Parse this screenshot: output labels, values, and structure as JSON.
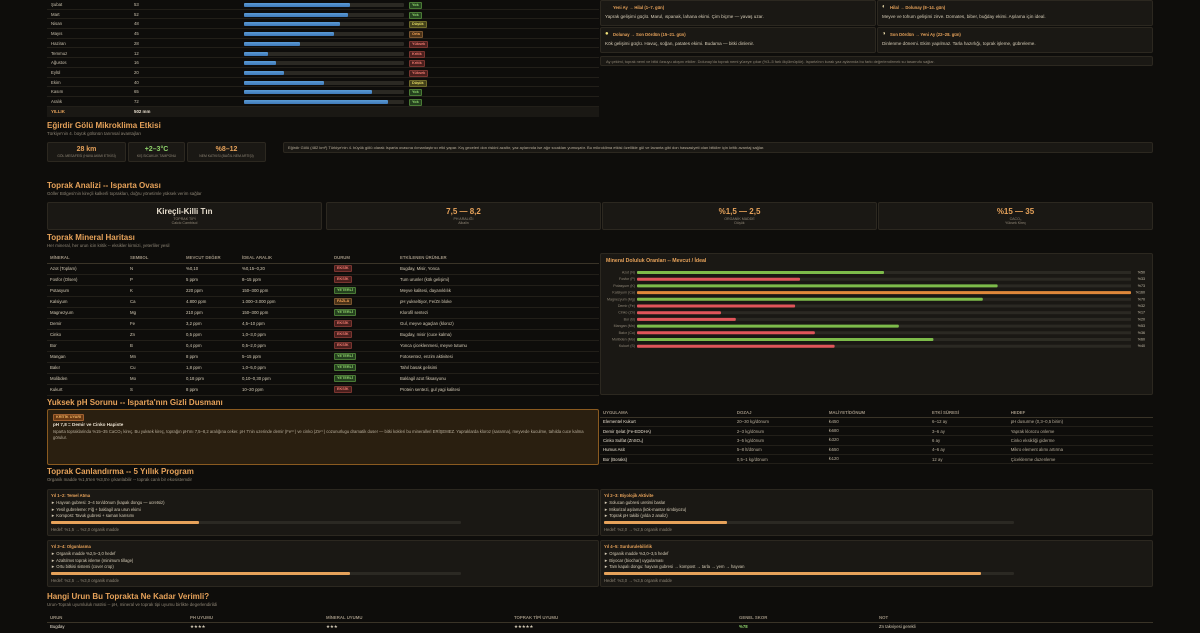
{
  "rain": {
    "rows": [
      {
        "month": "Şubat",
        "mm": "53",
        "pct": 0.66,
        "badge": "Yok",
        "cls": "b-green"
      },
      {
        "month": "Mart",
        "mm": "52",
        "pct": 0.65,
        "badge": "Yok",
        "cls": "b-green"
      },
      {
        "month": "Nisan",
        "mm": "48",
        "pct": 0.6,
        "badge": "Düşük",
        "cls": "b-yellow"
      },
      {
        "month": "Mayıs",
        "mm": "45",
        "pct": 0.56,
        "badge": "Orta",
        "cls": "b-orange"
      },
      {
        "month": "Haziran",
        "mm": "28",
        "pct": 0.35,
        "badge": "Yüksek",
        "cls": "b-red"
      },
      {
        "month": "Temmuz",
        "mm": "12",
        "pct": 0.15,
        "badge": "Kritik",
        "cls": "b-red"
      },
      {
        "month": "Ağustos",
        "mm": "16",
        "pct": 0.2,
        "badge": "Kritik",
        "cls": "b-red"
      },
      {
        "month": "Eylül",
        "mm": "20",
        "pct": 0.25,
        "badge": "Yüksek",
        "cls": "b-red"
      },
      {
        "month": "Ekim",
        "mm": "40",
        "pct": 0.5,
        "badge": "Düşük",
        "cls": "b-yellow"
      },
      {
        "month": "Kasım",
        "mm": "65",
        "pct": 0.8,
        "badge": "Yok",
        "cls": "b-green"
      },
      {
        "month": "Aralık",
        "mm": "72",
        "pct": 0.9,
        "badge": "Yok",
        "cls": "b-green"
      }
    ],
    "total_label": "YILLIK",
    "total_value": "502 mm"
  },
  "moon": {
    "cards": [
      {
        "title": "Yeni Ay → Hilal (1–7. gün)",
        "text": "Yaprak gelişimi güçlü. Marul, ıspanak, lahana ekimi. Çim biçme — yavaş uzar.",
        "icon": "●",
        "icolor": "#1a1814"
      },
      {
        "title": "Hilal → Dolunay (8–14. gün)",
        "text": "Meyve ve tohum gelişimi zirve. Domates, biber, buğday ekimi. Aşılama için ideal.",
        "icon": "◐",
        "icolor": "#e9d9a9"
      },
      {
        "title": "Dolunay → Son Dördün (15–21. gün)",
        "text": "Kök gelişimi güçlü. Havuç, soğan, patates ekimi. Budama — bitki dinlenir.",
        "icon": "●",
        "icolor": "#f2e27a"
      },
      {
        "title": "Son Dördün → Yeni Ay (22–28. gün)",
        "text": "Dinlenme dönemi. Ekim yapılmaz. Tarla hazırlığı, toprak işleme, gübreleme.",
        "icon": "◑",
        "icolor": "#e9d9a9"
      }
    ],
    "note": "Ay çekimi, toprak nemi ve bitki özsuyu akışını etkiler. Dolunay'da toprak nemi yüzeye çıkar (%3–5 fark ölçülmüştür). Isparta'nın kurak yaz aylarında bu farkı değerlendirmek su tasarrufu sağlar."
  },
  "lake": {
    "title": "Eğirdir Gölü Mikroklima Etkisi",
    "subtitle": "Türkiye'nin 4. büyük gölünün tarımsal avantajları",
    "stats": [
      {
        "value": "28 km",
        "label": "GÖL MESAFESİ (HAVA AKIMI ETKİSİ)",
        "color": "#e6a25a"
      },
      {
        "value": "+2–3°C",
        "label": "KIŞ SICAKLIK TAMPONU",
        "color": "#8fd36b"
      },
      {
        "value": "%8–12",
        "label": "NEM KATKISI (BAĞIL NEM ARTIŞI)",
        "color": "#e6a25a"
      }
    ],
    "text": "Eğirdir Gölü (482 km²) Türkiye'nin 4. büyük gölü olarak Isparta ovasına ılımanlaştırıcı etki yapar. Kış geceleri don riskini azaltır, yaz aylarında ise ağır sıcakları yumuşatır. Bu mikroklima etkisi özellikle gül ve lavanta gibi don hassasiyeti olan bitkiler için kritik avantaj sağlar."
  },
  "soil": {
    "title": "Toprak Analizi -- Isparta Ovası",
    "subtitle": "Göller Bölgesi'nin kireçli kalkerli toprakları, doğru yönetimle yüksek verim sağlar",
    "cards": [
      {
        "value": "Kireçli-Killi Tın",
        "label": "TOPRAK TİPİ",
        "sub": "Calcic Cambisol",
        "color": "#e8dfcf"
      },
      {
        "value": "7,5 — 8,2",
        "label": "PH ARALIĞI",
        "sub": "Alkalin",
        "color": "#e6a25a"
      },
      {
        "value": "%1,5 — 2,5",
        "label": "ORGANİK MADDE",
        "sub": "Düşük",
        "color": "#e6a25a"
      },
      {
        "value": "%15 — 35",
        "label": "CACO₃",
        "sub": "Yüksek Kireç",
        "color": "#e6a25a"
      }
    ]
  },
  "mineral": {
    "title": "Toprak Mineral Haritası",
    "subtitle": "Her mineral, her urun icin kritik -- eksikler kirmizi, yeterliler yesil",
    "headers": [
      "MİNERAL",
      "SEMBOL",
      "MEVCUT DEĞER",
      "İDEAL ARALIK",
      "DURUM",
      "ETKİLENEN ÜRÜNLER"
    ],
    "rows": [
      [
        "Azot (Toplam)",
        "N",
        "%0,10",
        "%0,15–0,20",
        "EKSİK",
        "Bugday, Misir, Yonca",
        "b-red"
      ],
      [
        "Fosfor (Olsen)",
        "P",
        "5 ppm",
        "8–15 ppm",
        "EKSİK",
        "Tum urunler (kök gelişimi)",
        "b-red"
      ],
      [
        "Potasyum",
        "K",
        "220 ppm",
        "150–300 ppm",
        "YETERLİ",
        "Meyve kalitesi, dayanıklılık",
        "b-green"
      ],
      [
        "Kalsiyum",
        "Ca",
        "4.800 ppm",
        "1.000–3.000 ppm",
        "FAZLA",
        "pH yukseltiyor, Fe/Zn bloke",
        "b-orange"
      ],
      [
        "Magnezyum",
        "Mg",
        "210 ppm",
        "150–300 ppm",
        "YETERLİ",
        "Klorofil sentezi",
        "b-green"
      ],
      [
        "Demir",
        "Fe",
        "3,2 ppm",
        "4,5–10 ppm",
        "EKSİK",
        "Gul, meyve agaçları (kloroz)",
        "b-red"
      ],
      [
        "Cinko",
        "Zn",
        "0,5 ppm",
        "1,0–3,0 ppm",
        "EKSİK",
        "Bugday, misir (cuce kalma)",
        "b-red"
      ],
      [
        "Bor",
        "B",
        "0,4 ppm",
        "0,5–2,0 ppm",
        "EKSİK",
        "Yonca çiceklenmesi, meyve tutumu",
        "b-red"
      ],
      [
        "Mangan",
        "Mn",
        "8 ppm",
        "5–15 ppm",
        "YETERLİ",
        "Fotosentez, enzim aktivitesi",
        "b-green"
      ],
      [
        "Bakır",
        "Cu",
        "1,8 ppm",
        "1,0–5,0 ppm",
        "YETERLİ",
        "Tahıl basak gelisimi",
        "b-green"
      ],
      [
        "Molibden",
        "Mo",
        "0,18 ppm",
        "0,10–0,30 ppm",
        "YETERLİ",
        "Baklagil azot fiksasyonu",
        "b-green"
      ],
      [
        "Kukurt",
        "S",
        "8 ppm",
        "10–20 ppm",
        "EKSİK",
        "Protein sentezi, gul yagi kalitesi",
        "b-red"
      ]
    ]
  },
  "chart_data": {
    "type": "bar",
    "title": "Mineral Doluluk Oranları -- Mevcut / İdeal",
    "categories": [
      "Azot (N)",
      "Fosfor (P)",
      "Potasyum (K)",
      "Kalsiyum (Ca)",
      "Magnezyum (Mg)",
      "Demir (Fe)",
      "Cinko (Zn)",
      "Bor (B)",
      "Mangan (Mn)",
      "Bakır (Cu)",
      "Molibden (Mo)",
      "Kukurt (S)"
    ],
    "values": [
      50,
      33,
      73,
      160,
      70,
      32,
      17,
      20,
      53,
      36,
      60,
      40
    ],
    "value_labels": [
      "%50",
      "%33",
      "%73",
      "%160",
      "%70",
      "%32",
      "%17",
      "%20",
      "%53",
      "%36",
      "%60",
      "%40"
    ],
    "xlim": [
      0,
      100
    ]
  },
  "ph": {
    "title": "Yuksek pH Sorunu -- Isparta'nın Gizli Dusmanı",
    "badge": "KRİTİK UYARI",
    "alert_title": "pH 7,8 = Demir ve Cinko Hapiste",
    "alert_text": "Isparta topraklarinda %15–35 CaCO₃ kireç. Bu yuksek kireç, toprağın pH'ını 7,5–8,2 aralığına ceker. pH 7'nin uzerinde demir (Fe³⁺) ve cinko (Zn²⁺) cozunurlugu dramatik duser — bitki kokleri bu mineralleri ERİŞEMEZ. Yapraklarda kloroz (sararma), meyvede kuculme, tahılda cuce kalma görulur.",
    "headers": [
      "UYGULAMA",
      "DOZAJ",
      "MALİYET/DÖNUM",
      "ETKİ SÜRESİ",
      "HEDEF"
    ],
    "rows": [
      [
        "Elementel Kukurt",
        "20–30 kg/dönum",
        "₺450",
        "6–12 ay",
        "pH dusurme (0,3–0,5 birim)"
      ],
      [
        "Demir Şelat (Fe-EDDHA)",
        "2–3 kg/dönum",
        "₺680",
        "3–6 ay",
        "Yaprak klorozu onleme"
      ],
      [
        "Cinko Sulfat (ZnSO₄)",
        "3–5 kg/dönum",
        "₺320",
        "6 ay",
        "Cinko eksikliği giderme"
      ],
      [
        "Humus Asit",
        "5–8 lt/dönum",
        "₺550",
        "4–6 ay",
        "Mikro element alımı artırma"
      ],
      [
        "Bor (Boraks)",
        "0,5–1 kg/dönum",
        "₺120",
        "12 ay",
        "Çiceklenme duzenleme"
      ]
    ]
  },
  "program": {
    "title": "Toprak Canlandırma -- 5 Yıllık Program",
    "subtitle": "Organik madde %1,5'ten %3,5'e çıkarılabilir -- toprak canlı bir ekosistemdir",
    "phases": [
      {
        "title": "Yıl 1–2: Temel Atma",
        "items": [
          "► Hayvan gubresi: 3–4 ton/dönum (kapak dongu — ucretsiz)",
          "► Yesil gubreleme: Fiğ + baklagil ara urun ekimi",
          "► Kompost: Tavuk gubresi + saman karısımı"
        ],
        "progress": 0.36,
        "target": "Hedef: %1,5 → %2,0 organik madde"
      },
      {
        "title": "Yıl 2–3: Biyolojik Aktivite",
        "items": [
          "► Solucan gubresi uretimi basla!",
          "► Mikorizal aşılama (kök-mantar simbiyozu)",
          "► Toprak pH takibi (yılda 2 analiz)"
        ],
        "progress": 0.3,
        "target": "Hedef: %2,0 → %2,5 organik madde"
      },
      {
        "title": "Yıl 3–4: Olgunlasma",
        "items": [
          "► Organik madde %2,5–3,0 hedef",
          "► Azaltılmıs toprak isleme (minimum tillage)",
          "► Ortu bitkisi sistemi (cover crop)"
        ],
        "progress": 0.73,
        "target": "Hedef: %2,5 → %3,0 organik madde"
      },
      {
        "title": "Yıl 4–5: Surdurulebilirlik",
        "items": [
          "► Organik madde %3,0–3,5 hedef",
          "► Biyocar (biochar) uygulaması",
          "► Tam kapalı dongu: hayvan gubresi → kompost → tarla → yem → hayvan"
        ],
        "progress": 0.92,
        "target": "Hedef: %3,0 → %3,5 organik madde"
      }
    ]
  },
  "crops": {
    "title": "Hangi Urun Bu Toprakta Ne Kadar Verimli?",
    "subtitle": "Urun-Toprak uyumluluk matrisi -- pH, mineral ve toprak tipi uyumu birlikte degerlendirildi",
    "headers": [
      "URUN",
      "PH UYUMU",
      "MİNERAL UYUMU",
      "TOPRAK TİPİ UYUMU",
      "GENEL SKOR",
      "NOT"
    ],
    "rows": [
      [
        "Bugday",
        "★★★★",
        "★★★",
        "★★★★★",
        "%78",
        "Zn takviyesi gerekli"
      ]
    ]
  }
}
